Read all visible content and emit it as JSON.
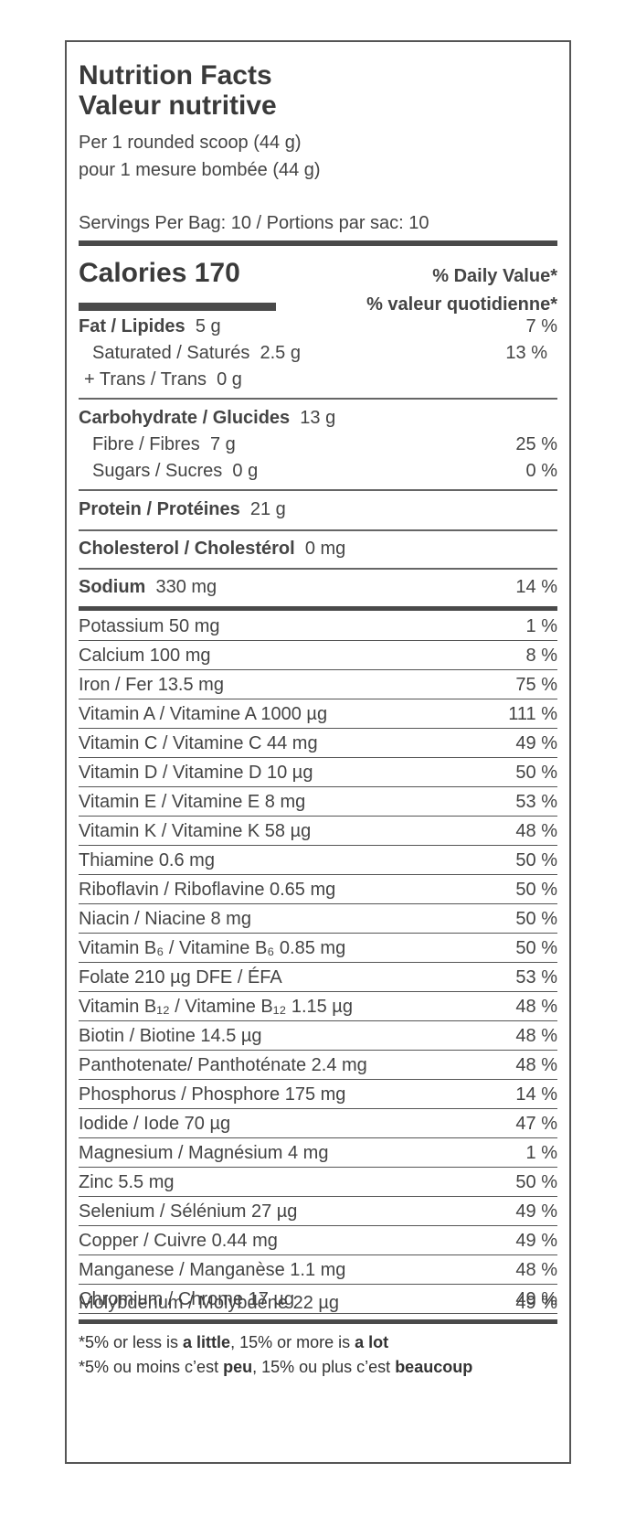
{
  "header": {
    "title_en": "Nutrition Facts",
    "title_fr": "Valeur nutritive",
    "serving_en": "Per 1 rounded scoop (44 g)",
    "serving_fr": "pour 1 mesure bombée (44 g)",
    "servings": "Servings Per Bag: 10 / Portions par sac: 10"
  },
  "calories": {
    "label": "Calories 170",
    "dv_en": "% Daily Value*",
    "dv_fr": "% valeur quotidienne*"
  },
  "macros": [
    {
      "name": "Fat / Lipides",
      "amount": "5 g",
      "pct": "7 %"
    },
    {
      "name": "Saturated / Saturés",
      "amount": "2.5 g",
      "pct": "13 %"
    },
    {
      "name": "+ Trans / Trans",
      "amount": "0 g",
      "pct": ""
    },
    {
      "name": "Carbohydrate / Glucides",
      "amount": "13 g",
      "pct": ""
    },
    {
      "name": "Fibre / Fibres",
      "amount": "7 g",
      "pct": "25 %"
    },
    {
      "name": "Sugars / Sucres",
      "amount": "0 g",
      "pct": "0 %"
    },
    {
      "name": "Protein / Protéines",
      "amount": "21 g",
      "pct": ""
    },
    {
      "name": "Cholesterol / Cholestérol",
      "amount": "0 mg",
      "pct": ""
    },
    {
      "name": "Sodium",
      "amount": "330 mg",
      "pct": "14 %"
    }
  ],
  "vitamins": [
    {
      "label": "Potassium  50 mg",
      "pct": "1 %"
    },
    {
      "label": "Calcium  100 mg",
      "pct": "8 %"
    },
    {
      "label": "Iron / Fer  13.5 mg",
      "pct": "75 %"
    },
    {
      "label": "Vitamin A / Vitamine A  1000 µg",
      "pct": "111 %"
    },
    {
      "label": "Vitamin C / Vitamine C  44 mg",
      "pct": "49 %"
    },
    {
      "label": "Vitamin D / Vitamine D  10 µg",
      "pct": "50 %"
    },
    {
      "label": "Vitamin E / Vitamine E  8 mg",
      "pct": "53 %"
    },
    {
      "label": "Vitamin K / Vitamine K 58 µg",
      "pct": "48 %"
    },
    {
      "label": "Thiamine  0.6 mg",
      "pct": "50 %"
    },
    {
      "label": "Riboflavin / Riboflavine  0.65 mg",
      "pct": "50 %"
    },
    {
      "label": "Niacin / Niacine 8 mg",
      "pct": "50 %"
    },
    {
      "label": "Vitamin B₆ / Vitamine B₆  0.85 mg",
      "pct": "50 %"
    },
    {
      "label": "Folate 210 µg DFE / ÉFA",
      "pct": "53 %"
    },
    {
      "label": "Vitamin B₁₂ / Vitamine B₁₂  1.15 µg",
      "pct": "48 %"
    },
    {
      "label": "Biotin / Biotine  14.5 µg",
      "pct": "48 %"
    },
    {
      "label": "Panthotenate/ Panthoténate  2.4 mg",
      "pct": "48 %"
    },
    {
      "label": "Phosphorus / Phosphore  175 mg",
      "pct": "14 %"
    },
    {
      "label": "Iodide / Iode  70 µg",
      "pct": "47 %"
    },
    {
      "label": "Magnesium / Magnésium  4 mg",
      "pct": "1 %"
    },
    {
      "label": "Zinc 5.5 mg",
      "pct": "50 %"
    },
    {
      "label": "Selenium / Sélénium  27 µg",
      "pct": "49 %"
    },
    {
      "label": "Copper / Cuivre  0.44 mg",
      "pct": "49 %"
    },
    {
      "label": "Manganese / Manganèse  1.1 mg",
      "pct": "48 %"
    },
    {
      "label": "Chromium / Chrome  17 µg",
      "pct": "49 %"
    },
    {
      "label": "Molybdenum / Molybdène  22 µg",
      "pct": "49 %"
    }
  ],
  "footnote": {
    "en_a": "*5% or less is ",
    "en_b": "a little",
    "en_c": ", 15% or more is ",
    "en_d": "a lot",
    "fr_a": "*5% ou moins c’est ",
    "fr_b": "peu",
    "fr_c": ", 15% ou plus c’est ",
    "fr_d": "beaucoup"
  }
}
